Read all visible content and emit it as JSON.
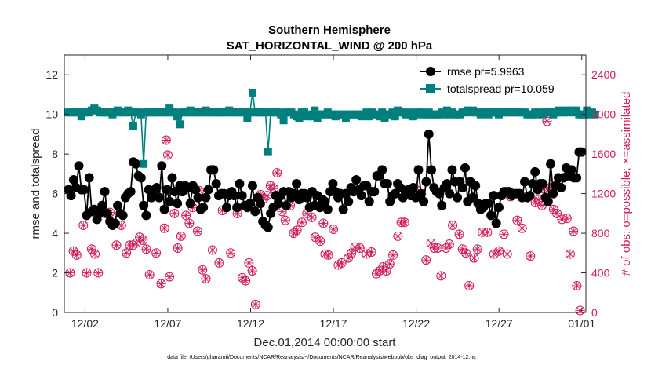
{
  "chart_data": {
    "type": "line",
    "title": [
      "Southern Hemisphere",
      "SAT_HORIZONTAL_WIND @ 200 hPa"
    ],
    "xlabel": "Dec.01,2014 00:00:00 start",
    "ylabel": "rmse and totalspread",
    "y2label": "# of obs: o=possible; ×=assimilated",
    "x_tick_labels": [
      "12/02",
      "12/07",
      "12/12",
      "12/17",
      "12/22",
      "12/27",
      "01/01"
    ],
    "x_tick_days": [
      1,
      6,
      11,
      16,
      21,
      26,
      31
    ],
    "xlim_days": [
      -0.25,
      31.25
    ],
    "ylim": [
      0,
      13
    ],
    "yticks": [
      0,
      2,
      4,
      6,
      8,
      10,
      12
    ],
    "y2lim": [
      0,
      2600
    ],
    "y2ticks": [
      0,
      400,
      800,
      1200,
      1600,
      2000,
      2400
    ],
    "legend": [
      "rmse pr=5.9963",
      "totalspread pr=10.059"
    ],
    "footnote": "data file: /Users/gharamti/Documents/NCAR/Reanalysis/~/Documents/NCAR/Reanalysis/webpub/obs_diag_output_2014-12.nc",
    "colors": {
      "rmse": "#000000",
      "spread": "#007f7f",
      "obs": "#d01c5b"
    },
    "series": [
      {
        "name": "rmse",
        "values": [
          6.2,
          5.9,
          6.7,
          6.3,
          7.4,
          6.2,
          6.2,
          4.9,
          6.8,
          5.1,
          5.2,
          4.7,
          5.0,
          5.4,
          6.1,
          5.0,
          4.6,
          4.4,
          4.5,
          5.4,
          5.0,
          4.9,
          5.8,
          6.0,
          6.1,
          7.6,
          7.5,
          6.9,
          6.8,
          5.4,
          4.9,
          6.2,
          5.8,
          6.0,
          6.3,
          5.8,
          7.4,
          5.2,
          6.2,
          5.6,
          6.8,
          6.1,
          5.5,
          6.4,
          6.1,
          6.4,
          6.3,
          5.5,
          6.4,
          6.2,
          5.8,
          5.2,
          5.3,
          5.8,
          6.2,
          7.2,
          7.2,
          6.5,
          5.9,
          6.0,
          6.0,
          5.3,
          5.9,
          6.1,
          5.9,
          5.3,
          6.5,
          5.9,
          5.4,
          5.3,
          5.5,
          6.4,
          5.1,
          5.8,
          5.5,
          4.6,
          4.4,
          4.3,
          5.0,
          5.3,
          5.9,
          5.5,
          5.9,
          6.1,
          5.4,
          6.1,
          5.8,
          6.0,
          6.5,
          5.7,
          6.0,
          6.0,
          5.8,
          5.3,
          6.1,
          5.4,
          5.9,
          5.3,
          5.7,
          5.6,
          5.2,
          6.1,
          6.5,
          6.1,
          5.8,
          6.0,
          5.2,
          6.0,
          5.6,
          6.3,
          6.1,
          6.7,
          6.2,
          5.9,
          6.4,
          6.4,
          5.6,
          6.1,
          6.1,
          6.9,
          6.9,
          7.2,
          6.5,
          6.5,
          5.6,
          5.9,
          6.0,
          6.5,
          6.3,
          5.8,
          6.1,
          6.2,
          5.9,
          6.3,
          5.8,
          7.2,
          6.0,
          5.6,
          6.6,
          9.0,
          7.2,
          6.3,
          6.1,
          6.0,
          5.4,
          6.3,
          6.5,
          6.0,
          7.2,
          6.6,
          5.8,
          6.6,
          6.3,
          7.3,
          5.6,
          6.6,
          5.8,
          6.4,
          5.5,
          5.2,
          5.3,
          5.5,
          5.5,
          4.9,
          5.9,
          4.5,
          5.3,
          5.9,
          6.1,
          6.1,
          6.1,
          5.9,
          6.0,
          6.0,
          6.0,
          5.8,
          6.6,
          5.8,
          5.9,
          6.5,
          7.1,
          6.2,
          6.5,
          6.5,
          5.8,
          5.6,
          7.5,
          6.0,
          6.4,
          6.8,
          6.3,
          6.8,
          7.3,
          6.9,
          7.2,
          6.8,
          6.8,
          8.1,
          8.1
        ]
      },
      {
        "name": "totalspread",
        "values": [
          10.1,
          10.1,
          10.1,
          10.1,
          10.1,
          9.9,
          10.1,
          10.1,
          10.1,
          10.2,
          10.3,
          10.2,
          10.1,
          10.1,
          10.1,
          10.1,
          10.1,
          10.0,
          10.1,
          10.2,
          10.1,
          10.1,
          10.1,
          10.2,
          10.1,
          9.4,
          10.1,
          10.1,
          10.0,
          7.5,
          10.1,
          10.1,
          10.1,
          10.1,
          10.1,
          10.1,
          10.1,
          10.1,
          10.1,
          10.3,
          10.1,
          10.1,
          9.9,
          9.5,
          10.1,
          10.1,
          10.1,
          10.2,
          10.1,
          10.1,
          10.1,
          10.1,
          10.1,
          10.2,
          10.1,
          10.1,
          10.1,
          10.1,
          10.1,
          10.1,
          10.1,
          10.1,
          10.2,
          10.1,
          10.1,
          10.1,
          10.1,
          10.1,
          10.1,
          9.8,
          10.1,
          11.1,
          10.1,
          10.1,
          10.1,
          10.1,
          10.1,
          8.1,
          10.1,
          10.1,
          10.1,
          10.1,
          10.0,
          9.7,
          10.1,
          10.1,
          10.1,
          10.0,
          9.9,
          9.8,
          10.1,
          10.1,
          9.9,
          10.0,
          9.9,
          10.2,
          9.8,
          10.0,
          10.0,
          10.0,
          10.1,
          10.0,
          10.0,
          9.9,
          10.0,
          10.0,
          10.0,
          9.8,
          10.0,
          10.0,
          10.0,
          10.0,
          10.0,
          9.9,
          10.0,
          10.1,
          9.9,
          10.1,
          10.0,
          10.0,
          9.9,
          10.1,
          9.8,
          10.0,
          10.0,
          10.1,
          9.9,
          10.2,
          10.1,
          10.1,
          10.0,
          10.0,
          10.1,
          9.9,
          10.0,
          10.1,
          10.1,
          10.0,
          10.0,
          10.1,
          10.0,
          10.0,
          10.0,
          10.0,
          10.1,
          10.0,
          10.2,
          10.0,
          10.1,
          10.0,
          10.0,
          10.0,
          10.1,
          10.1,
          10.2,
          10.1,
          10.2,
          10.1,
          10.1,
          10.0,
          10.1,
          10.1,
          10.0,
          10.1,
          10.1,
          10.1,
          10.0,
          10.1,
          10.1,
          10.1,
          10.1,
          10.1,
          10.1,
          10.1,
          10.1,
          10.1,
          10.1,
          10.0,
          10.0,
          10.0,
          10.1,
          10.0,
          10.1,
          10.0,
          10.1,
          10.1,
          10.1,
          10.0,
          10.1,
          10.2,
          10.1,
          10.1,
          10.2,
          10.1,
          10.2,
          10.1,
          10.2,
          10.0,
          10.0,
          10.0,
          10.2,
          10.0,
          10.1,
          10.0
        ]
      },
      {
        "name": "obs_count",
        "points": [
          [
            0.1,
            400
          ],
          [
            0.3,
            620
          ],
          [
            0.5,
            580
          ],
          [
            0.9,
            880
          ],
          [
            1.1,
            400
          ],
          [
            1.4,
            640
          ],
          [
            1.6,
            590
          ],
          [
            1.8,
            400
          ],
          [
            2.0,
            1040
          ],
          [
            2.2,
            1000
          ],
          [
            2.5,
            1010
          ],
          [
            2.9,
            680
          ],
          [
            3.2,
            880
          ],
          [
            3.5,
            600
          ],
          [
            3.7,
            680
          ],
          [
            3.9,
            680
          ],
          [
            4.1,
            700
          ],
          [
            4.3,
            760
          ],
          [
            4.5,
            730
          ],
          [
            4.7,
            640
          ],
          [
            4.9,
            380
          ],
          [
            5.3,
            600
          ],
          [
            5.6,
            290
          ],
          [
            5.8,
            850
          ],
          [
            5.9,
            1740
          ],
          [
            6.0,
            1590
          ],
          [
            6.1,
            360
          ],
          [
            6.4,
            1000
          ],
          [
            6.6,
            650
          ],
          [
            6.8,
            770
          ],
          [
            7.1,
            980
          ],
          [
            7.3,
            900
          ],
          [
            7.5,
            1060
          ],
          [
            7.8,
            820
          ],
          [
            7.9,
            1230
          ],
          [
            8.1,
            430
          ],
          [
            8.3,
            340
          ],
          [
            8.7,
            630
          ],
          [
            9.1,
            500
          ],
          [
            9.3,
            1030
          ],
          [
            9.8,
            600
          ],
          [
            10.2,
            1000
          ],
          [
            10.5,
            350
          ],
          [
            10.7,
            320
          ],
          [
            10.9,
            500
          ],
          [
            11.1,
            420
          ],
          [
            11.3,
            80
          ],
          [
            11.6,
            1190
          ],
          [
            11.8,
            1150
          ],
          [
            12.0,
            1180
          ],
          [
            12.2,
            1280
          ],
          [
            12.4,
            1250
          ],
          [
            12.6,
            1410
          ],
          [
            12.9,
            1020
          ],
          [
            13.1,
            930
          ],
          [
            13.4,
            1080
          ],
          [
            13.6,
            800
          ],
          [
            13.8,
            830
          ],
          [
            14.1,
            910
          ],
          [
            14.4,
            1000
          ],
          [
            14.7,
            960
          ],
          [
            14.9,
            760
          ],
          [
            15.2,
            720
          ],
          [
            15.4,
            900
          ],
          [
            15.5,
            590
          ],
          [
            15.7,
            580
          ],
          [
            16.0,
            840
          ],
          [
            16.3,
            480
          ],
          [
            16.5,
            500
          ],
          [
            16.9,
            550
          ],
          [
            17.1,
            600
          ],
          [
            17.3,
            660
          ],
          [
            17.6,
            650
          ],
          [
            18.0,
            590
          ],
          [
            18.3,
            610
          ],
          [
            18.6,
            390
          ],
          [
            18.8,
            420
          ],
          [
            19.0,
            460
          ],
          [
            19.2,
            420
          ],
          [
            19.4,
            490
          ],
          [
            19.6,
            580
          ],
          [
            19.9,
            770
          ],
          [
            20.1,
            910
          ],
          [
            20.3,
            910
          ],
          [
            20.6,
            1190
          ],
          [
            21.0,
            1240
          ],
          [
            21.3,
            1190
          ],
          [
            21.6,
            530
          ],
          [
            21.9,
            700
          ],
          [
            22.1,
            650
          ],
          [
            22.3,
            650
          ],
          [
            22.5,
            370
          ],
          [
            22.8,
            650
          ],
          [
            23.0,
            690
          ],
          [
            23.2,
            880
          ],
          [
            23.6,
            790
          ],
          [
            23.8,
            640
          ],
          [
            24.0,
            600
          ],
          [
            24.2,
            270
          ],
          [
            24.5,
            550
          ],
          [
            24.7,
            640
          ],
          [
            25.0,
            810
          ],
          [
            25.3,
            810
          ],
          [
            25.7,
            590
          ],
          [
            26.0,
            620
          ],
          [
            26.3,
            790
          ],
          [
            26.5,
            590
          ],
          [
            26.7,
            1170
          ],
          [
            27.1,
            930
          ],
          [
            27.4,
            850
          ],
          [
            27.7,
            1170
          ],
          [
            27.9,
            570
          ],
          [
            28.2,
            1110
          ],
          [
            28.4,
            1140
          ],
          [
            28.6,
            1080
          ],
          [
            28.7,
            1250
          ],
          [
            28.9,
            1930
          ],
          [
            29.1,
            1260
          ],
          [
            29.3,
            1040
          ],
          [
            29.5,
            1000
          ],
          [
            29.8,
            940
          ],
          [
            30.1,
            950
          ],
          [
            30.3,
            590
          ],
          [
            30.5,
            820
          ],
          [
            30.7,
            270
          ],
          [
            30.9,
            20
          ]
        ]
      }
    ]
  }
}
